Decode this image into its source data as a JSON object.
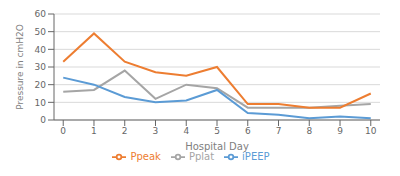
{
  "chart_data": {
    "type": "line",
    "xlabel": "Hospital Day",
    "ylabel": "Pressure in cmH2O",
    "x": [
      0,
      1,
      2,
      3,
      4,
      5,
      6,
      7,
      8,
      9,
      10
    ],
    "series": [
      {
        "name": "Pplat",
        "color": "#a5a5a5",
        "values": [
          16,
          17,
          28,
          12,
          20,
          18,
          7,
          7,
          7,
          8,
          9
        ]
      },
      {
        "name": "iPEEP",
        "color": "#5b9bd5",
        "values": [
          24,
          20,
          13,
          10,
          11,
          17,
          4,
          3,
          1,
          2,
          1
        ]
      },
      {
        "name": "Ppeak",
        "color": "#ed7d31",
        "values": [
          33,
          49,
          33,
          27,
          25,
          30,
          9,
          9,
          7,
          7,
          15
        ]
      }
    ],
    "xlim": [
      -0.3,
      10.3
    ],
    "xticks": [
      0,
      1,
      2,
      3,
      4,
      5,
      6,
      7,
      8,
      9,
      10
    ],
    "ylim": [
      0,
      60
    ],
    "yticks": [
      0,
      10,
      20,
      30,
      40,
      50,
      60
    ],
    "grid": true,
    "legend": "bottom"
  }
}
